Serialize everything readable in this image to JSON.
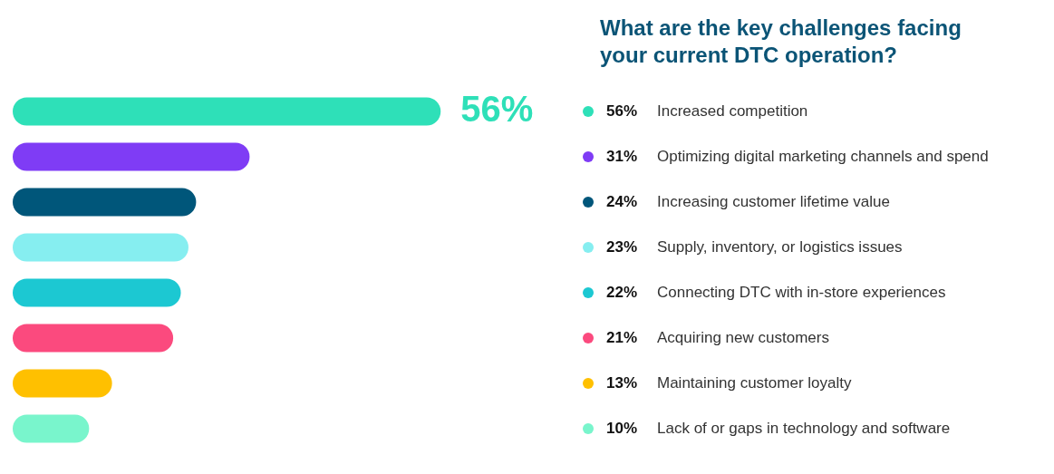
{
  "chart_data": {
    "type": "bar",
    "orientation": "horizontal",
    "title": "What are the key challenges facing your current DTC operation?",
    "categories": [
      "Increased competition",
      "Optimizing digital marketing channels and spend",
      "Increasing customer lifetime value",
      "Supply, inventory, or logistics issues",
      "Connecting DTC with in-store experiences",
      "Acquiring new customers",
      "Maintaining customer loyalty",
      "Lack of or gaps in technology and software"
    ],
    "values": [
      56,
      31,
      24,
      23,
      22,
      21,
      13,
      10
    ],
    "colors": [
      "#2ee0b8",
      "#7f3cf5",
      "#00567a",
      "#86eef0",
      "#1cc8d2",
      "#fb4a7e",
      "#ffc000",
      "#79f5cc"
    ],
    "value_labels": [
      "56%",
      "31%",
      "24%",
      "23%",
      "22%",
      "21%",
      "13%",
      "10%"
    ],
    "annotations": [
      "56%"
    ],
    "tick_labels": false
  }
}
